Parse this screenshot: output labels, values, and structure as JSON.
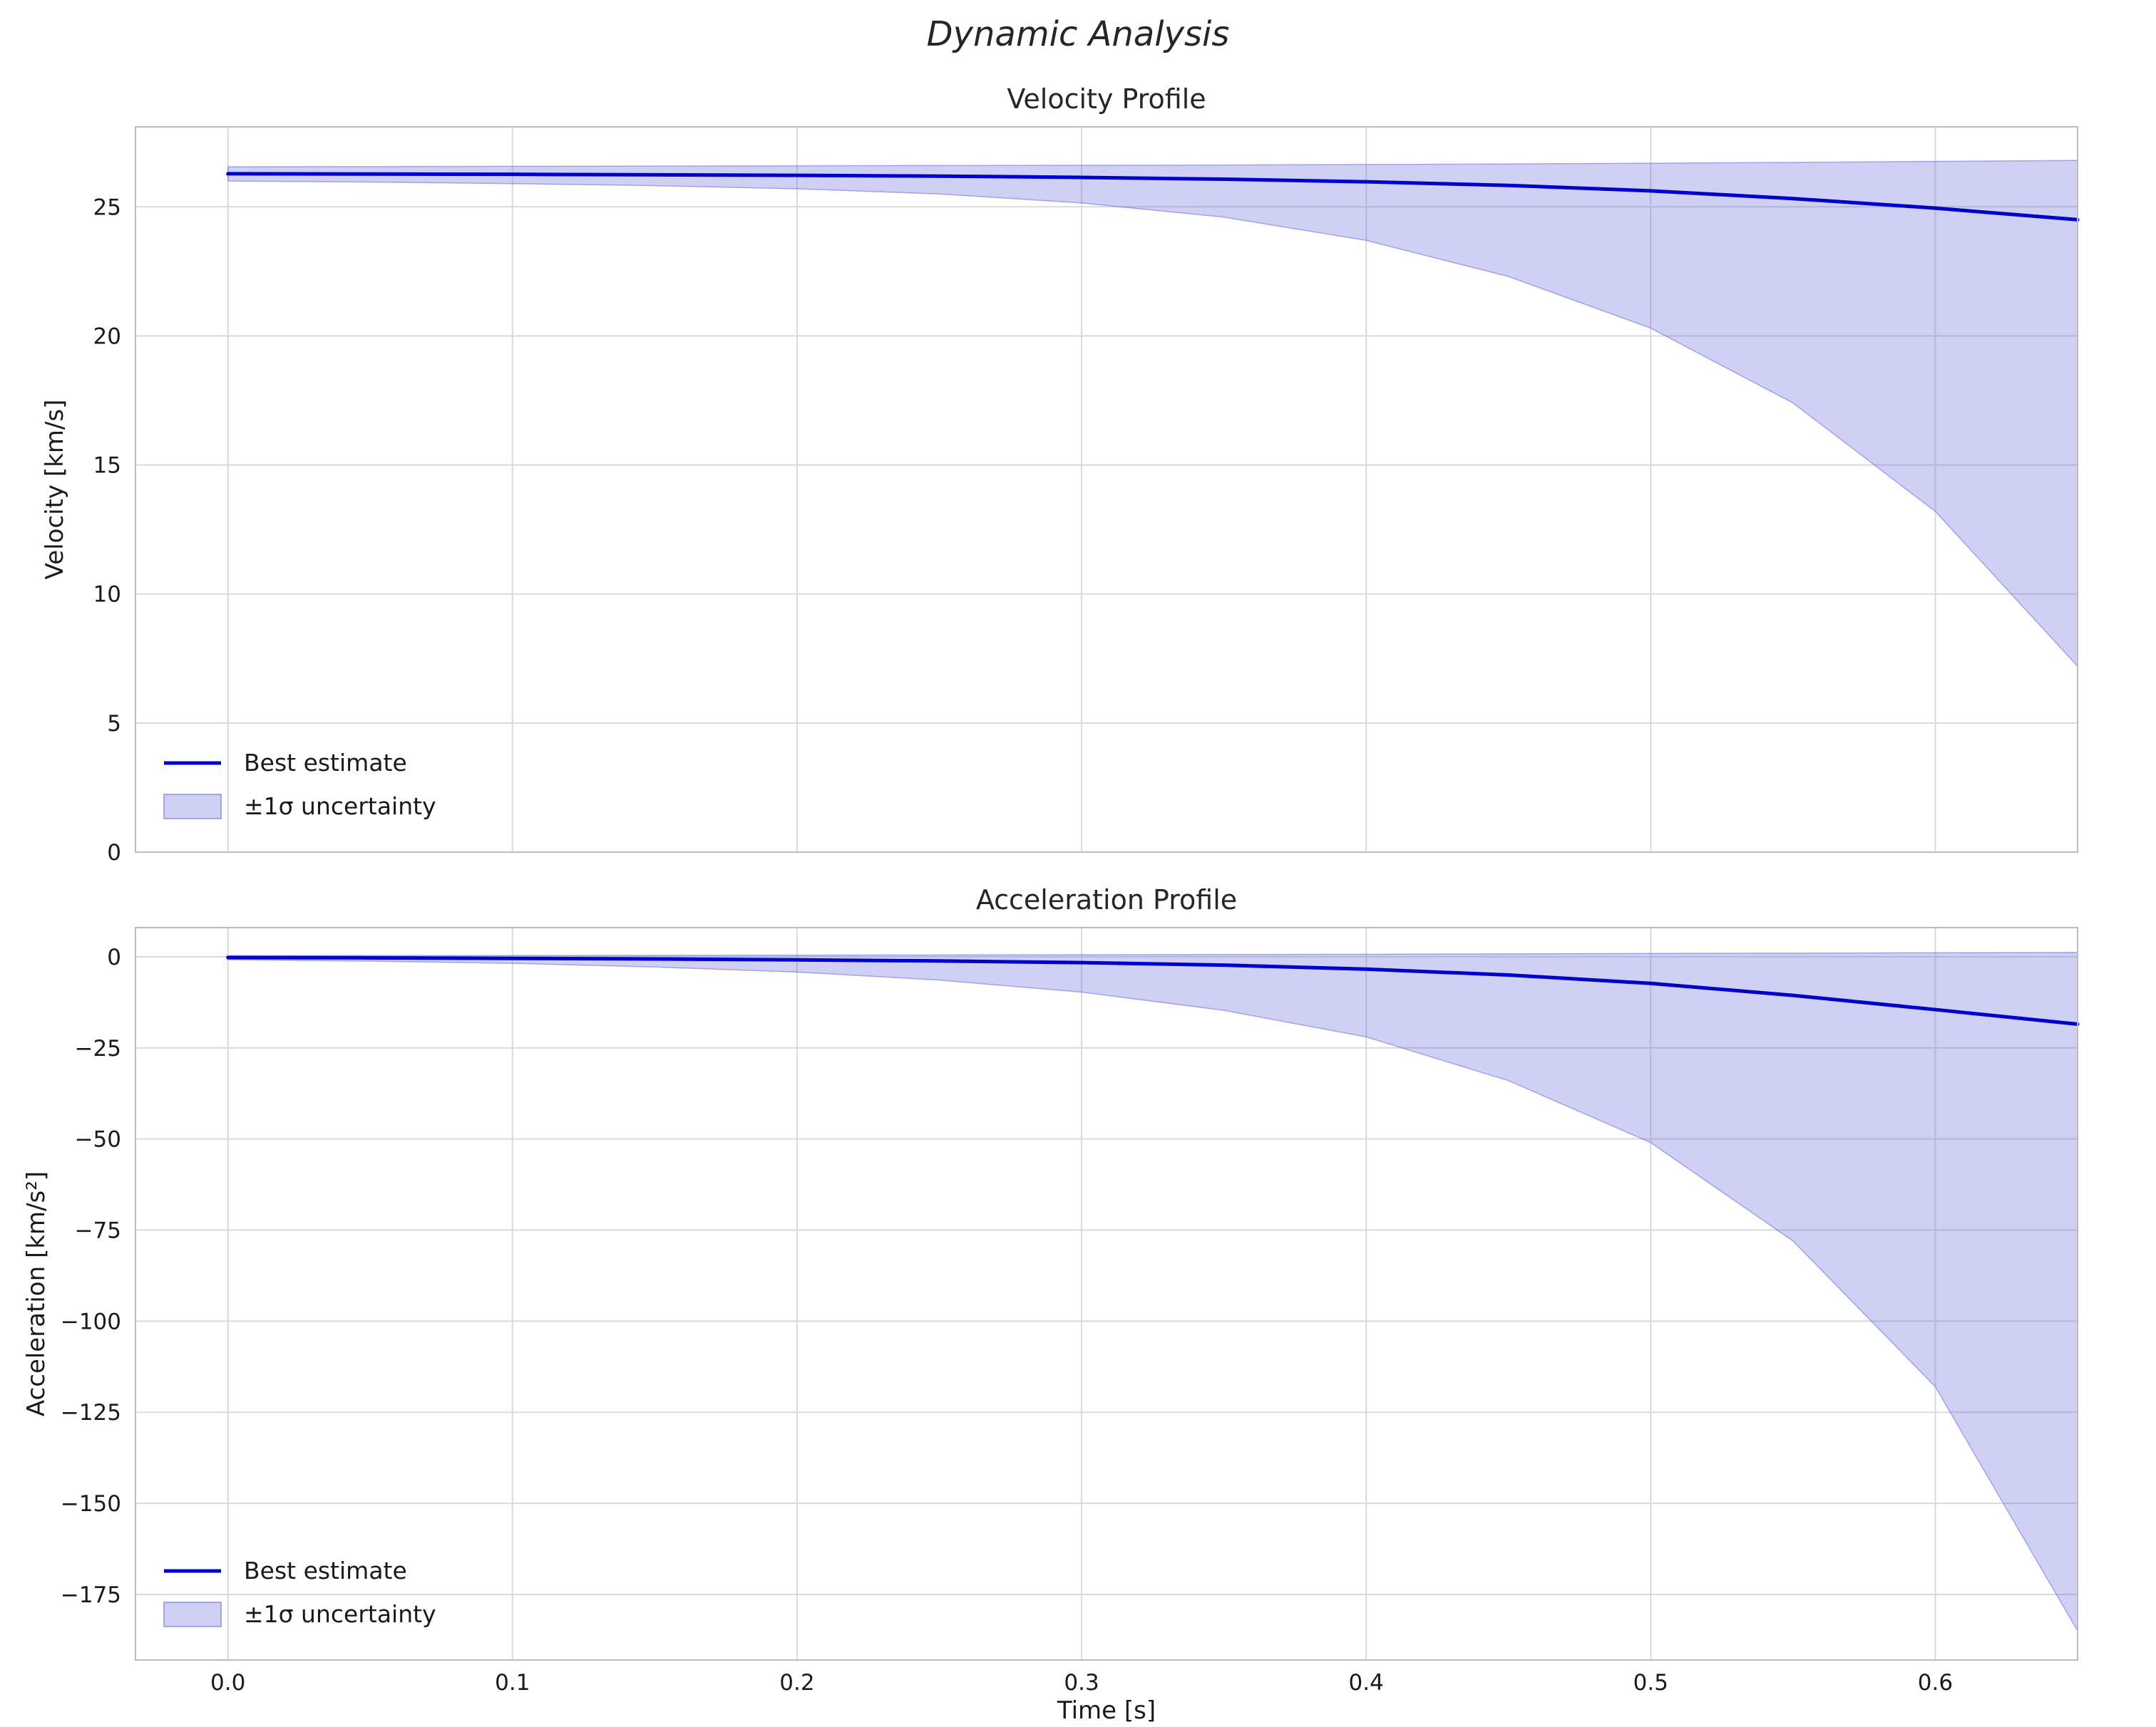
{
  "figure": {
    "title": "Dynamic Analysis"
  },
  "colors": {
    "line": "#0000cc",
    "band_fill": "rgba(108,108,221,0.32)",
    "band_edge": "rgba(108,108,221,0.55)",
    "grid": "#d9d9d9",
    "spine": "#bcbcbc",
    "text": "#1a1a1a"
  },
  "chart_data": [
    {
      "type": "line",
      "title": "Velocity Profile",
      "xlabel": "",
      "ylabel": "Velocity [km/s]",
      "xlim": [
        -0.0325,
        0.65
      ],
      "ylim": [
        0,
        28.1
      ],
      "xticks": [
        0,
        0.1,
        0.2,
        0.3,
        0.4,
        0.5,
        0.6
      ],
      "xtick_labels": [
        "0.0",
        "0.1",
        "0.2",
        "0.3",
        "0.4",
        "0.5",
        "0.6"
      ],
      "show_xtick_labels": false,
      "yticks": [
        0,
        5,
        10,
        15,
        20,
        25
      ],
      "ytick_labels": [
        "0",
        "5",
        "10",
        "15",
        "20",
        "25"
      ],
      "grid": true,
      "x": [
        0,
        0.05,
        0.1,
        0.15,
        0.2,
        0.25,
        0.3,
        0.35,
        0.4,
        0.45,
        0.5,
        0.55,
        0.6,
        0.65
      ],
      "series": [
        {
          "name": "Best estimate",
          "values": [
            26.28,
            26.27,
            26.26,
            26.24,
            26.22,
            26.19,
            26.14,
            26.07,
            25.97,
            25.83,
            25.62,
            25.32,
            24.95,
            24.5
          ]
        }
      ],
      "band": {
        "name": "±1σ uncertainty",
        "upper": [
          26.55,
          26.56,
          26.57,
          26.58,
          26.59,
          26.6,
          26.61,
          26.62,
          26.64,
          26.66,
          26.69,
          26.72,
          26.76,
          26.8
        ],
        "lower": [
          26.0,
          25.96,
          25.9,
          25.82,
          25.7,
          25.5,
          25.15,
          24.6,
          23.7,
          22.3,
          20.3,
          17.4,
          13.2,
          7.2
        ]
      },
      "legend": {
        "position": "lower left",
        "entries": [
          "Best estimate",
          "±1σ uncertainty"
        ]
      }
    },
    {
      "type": "line",
      "title": "Acceleration Profile",
      "xlabel": "Time [s]",
      "ylabel": "Acceleration [km/s²]",
      "xlim": [
        -0.0325,
        0.65
      ],
      "ylim": [
        -193,
        8
      ],
      "xticks": [
        0,
        0.1,
        0.2,
        0.3,
        0.4,
        0.5,
        0.6
      ],
      "xtick_labels": [
        "0.0",
        "0.1",
        "0.2",
        "0.3",
        "0.4",
        "0.5",
        "0.6"
      ],
      "show_xtick_labels": true,
      "yticks": [
        0,
        -25,
        -50,
        -75,
        -100,
        -125,
        -150,
        -175
      ],
      "ytick_labels": [
        "0",
        "−25",
        "−50",
        "−75",
        "−100",
        "−125",
        "−150",
        "−175"
      ],
      "grid": true,
      "x": [
        0,
        0.05,
        0.1,
        0.15,
        0.2,
        0.25,
        0.3,
        0.35,
        0.4,
        0.45,
        0.5,
        0.55,
        0.6,
        0.65
      ],
      "series": [
        {
          "name": "Best estimate",
          "values": [
            -0.2,
            -0.3,
            -0.45,
            -0.6,
            -0.85,
            -1.15,
            -1.6,
            -2.3,
            -3.4,
            -5.0,
            -7.3,
            -10.6,
            -14.5,
            -18.5
          ]
        }
      ],
      "band": {
        "name": "±1σ uncertainty",
        "upper": [
          0.3,
          0.32,
          0.35,
          0.4,
          0.45,
          0.5,
          0.55,
          0.62,
          0.7,
          0.8,
          0.9,
          1.0,
          1.1,
          1.2
        ],
        "lower": [
          -0.8,
          -1.2,
          -1.8,
          -2.8,
          -4.2,
          -6.4,
          -9.7,
          -14.7,
          -22,
          -34,
          -51,
          -78,
          -118,
          -185
        ]
      },
      "legend": {
        "position": "lower left",
        "entries": [
          "Best estimate",
          "±1σ uncertainty"
        ]
      }
    }
  ]
}
